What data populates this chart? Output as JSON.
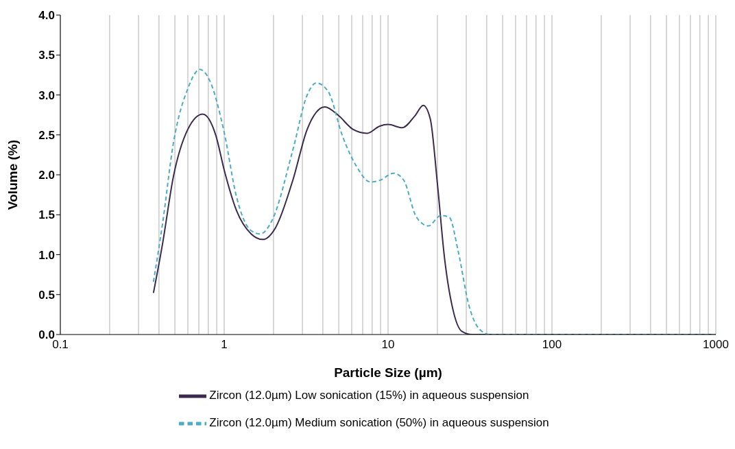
{
  "chart_data": {
    "type": "line",
    "xlabel": "Particle Size (µm)",
    "ylabel": "Volume (%)",
    "log": "x",
    "grid": "x",
    "legend": "bottom",
    "marker": "none",
    "xlim": [
      0.1,
      1000
    ],
    "ylim": [
      0,
      4
    ],
    "xticks": [
      0.1,
      {
        "value": 0.2,
        "label": null
      },
      {
        "value": 0.3,
        "label": null
      },
      {
        "value": 0.4,
        "label": null
      },
      {
        "value": 0.5,
        "label": null
      },
      {
        "value": 0.6,
        "label": null
      },
      {
        "value": 0.7,
        "label": null
      },
      {
        "value": 0.8,
        "label": null
      },
      {
        "value": 0.9,
        "label": null
      },
      1,
      {
        "value": 2,
        "label": null
      },
      {
        "value": 3,
        "label": null
      },
      {
        "value": 4,
        "label": null
      },
      {
        "value": 5,
        "label": null
      },
      {
        "value": 6,
        "label": null
      },
      {
        "value": 7,
        "label": null
      },
      {
        "value": 8,
        "label": null
      },
      {
        "value": 9,
        "label": null
      },
      10,
      {
        "value": 20,
        "label": null
      },
      {
        "value": 30,
        "label": null
      },
      {
        "value": 40,
        "label": null
      },
      {
        "value": 50,
        "label": null
      },
      {
        "value": 60,
        "label": null
      },
      {
        "value": 70,
        "label": null
      },
      {
        "value": 80,
        "label": null
      },
      {
        "value": 90,
        "label": null
      },
      100,
      {
        "value": 200,
        "label": null
      },
      {
        "value": 300,
        "label": null
      },
      {
        "value": 400,
        "label": null
      },
      {
        "value": 500,
        "label": null
      },
      {
        "value": 600,
        "label": null
      },
      {
        "value": 700,
        "label": null
      },
      {
        "value": 800,
        "label": null
      },
      {
        "value": 900,
        "label": null
      },
      1000
    ],
    "yticks": [
      {
        "value": 0,
        "label": "0.0"
      },
      {
        "value": 0.5,
        "label": "0.5"
      },
      {
        "value": 1,
        "label": "1.0"
      },
      {
        "value": 1.5,
        "label": "1.5"
      },
      {
        "value": 2,
        "label": "2.0"
      },
      {
        "value": 2.5,
        "label": "2.5"
      },
      {
        "value": 3,
        "label": "3.0"
      },
      {
        "value": 3.5,
        "label": "3.5"
      },
      {
        "value": 4,
        "label": "4.0"
      }
    ],
    "series": [
      {
        "name": "Zircon (12.0µm) Low sonication (15%) in aqueous suspension",
        "color": "#3b2a4e",
        "line_style": "solid",
        "x": [
          0.37,
          0.42,
          0.49,
          0.6,
          0.74,
          0.89,
          1,
          1.19,
          1.46,
          1.72,
          2.06,
          2.63,
          3.21,
          4.11,
          5,
          6.1,
          7.44,
          8.9,
          10,
          12.2,
          14.6,
          16.4,
          18.1,
          20,
          22.1,
          25.1,
          28.2,
          32.6,
          100,
          1000
        ],
        "values": [
          0.52,
          1.13,
          1.98,
          2.57,
          2.76,
          2.49,
          2.06,
          1.55,
          1.26,
          1.19,
          1.34,
          1.94,
          2.57,
          2.85,
          2.74,
          2.57,
          2.52,
          2.61,
          2.63,
          2.59,
          2.74,
          2.87,
          2.7,
          1.89,
          0.96,
          0.28,
          0.04,
          0,
          0,
          0
        ]
      },
      {
        "name": "Zircon (12.0µm) Medium sonication (50%) in aqueous suspension",
        "color": "#4bacc6",
        "line_style": "dashed",
        "x": [
          0.37,
          0.42,
          0.49,
          0.6,
          0.71,
          0.82,
          1,
          1.19,
          1.46,
          1.66,
          1.96,
          2.63,
          3.21,
          3.65,
          4.32,
          5.26,
          6.4,
          7.8,
          8.9,
          10.8,
          12.4,
          14.9,
          17.6,
          21,
          23.6,
          26.8,
          31.1,
          36,
          41.9,
          100,
          1000
        ],
        "values": [
          0.66,
          1.38,
          2.4,
          3.08,
          3.32,
          3.17,
          2.53,
          1.72,
          1.3,
          1.26,
          1.43,
          2.32,
          3,
          3.15,
          3.04,
          2.49,
          2.11,
          1.91,
          1.93,
          2.02,
          1.94,
          1.47,
          1.36,
          1.49,
          1.47,
          1.04,
          0.37,
          0.07,
          0,
          0,
          0
        ]
      }
    ]
  }
}
